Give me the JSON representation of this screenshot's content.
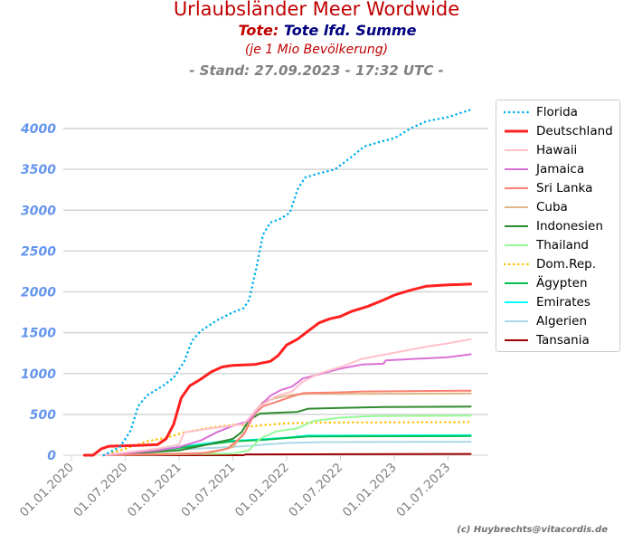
{
  "header": {
    "title": "Urlaubsländer Meer Wordwide",
    "subtitle_prefix": "Tote:",
    "subtitle": "Tote lfd. Summe",
    "note": "(je 1 Mio Bevölkerung)",
    "stand": "- Stand: 27.09.2023 - 17:32 UTC -"
  },
  "copyright": "(c) Huybrechts@vitacordis.de",
  "chart_data": {
    "type": "line",
    "title": "Urlaubsländer Meer Wordwide",
    "xlabel": "",
    "ylabel": "Tote lfd. Summe (je 1 Mio Bevölkerung)",
    "ylim": [
      0,
      4400
    ],
    "xlim": [
      2019.93,
      2023.9
    ],
    "yticks": [
      0,
      500,
      1000,
      1500,
      2000,
      2500,
      3000,
      3500,
      4000
    ],
    "ytick_labels": [
      "0",
      "500",
      "1000",
      "1500",
      "2000",
      "2500",
      "3000",
      "3500",
      "4000"
    ],
    "xticks": [
      2020.0,
      2020.5,
      2021.0,
      2021.5,
      2022.0,
      2022.5,
      2023.0,
      2023.5
    ],
    "xtick_labels": [
      "01.01.2020",
      "01.07.2020",
      "01.01.2021",
      "01.07.2021",
      "01.01.2022",
      "01.07.2022",
      "01.01.2023",
      "01.07.2023"
    ],
    "grid": "y",
    "legend_position": "right",
    "series": [
      {
        "name": "Florida",
        "color": "#00b0f0",
        "style": "dotted",
        "points": [
          [
            2020.3,
            0
          ],
          [
            2020.45,
            100
          ],
          [
            2020.55,
            300
          ],
          [
            2020.62,
            600
          ],
          [
            2020.7,
            730
          ],
          [
            2020.85,
            850
          ],
          [
            2020.95,
            950
          ],
          [
            2021.05,
            1150
          ],
          [
            2021.12,
            1400
          ],
          [
            2021.2,
            1520
          ],
          [
            2021.35,
            1650
          ],
          [
            2021.5,
            1750
          ],
          [
            2021.6,
            1800
          ],
          [
            2021.65,
            1900
          ],
          [
            2021.72,
            2300
          ],
          [
            2021.78,
            2700
          ],
          [
            2021.85,
            2850
          ],
          [
            2021.95,
            2900
          ],
          [
            2022.03,
            2970
          ],
          [
            2022.1,
            3250
          ],
          [
            2022.17,
            3400
          ],
          [
            2022.3,
            3450
          ],
          [
            2022.45,
            3500
          ],
          [
            2022.6,
            3650
          ],
          [
            2022.72,
            3780
          ],
          [
            2022.85,
            3830
          ],
          [
            2023.0,
            3880
          ],
          [
            2023.15,
            4000
          ],
          [
            2023.3,
            4090
          ],
          [
            2023.5,
            4140
          ],
          [
            2023.71,
            4230
          ]
        ]
      },
      {
        "name": "Deutschland",
        "color": "#ff2020",
        "style": "solid-bold",
        "points": [
          [
            2020.12,
            0
          ],
          [
            2020.2,
            0
          ],
          [
            2020.28,
            80
          ],
          [
            2020.35,
            110
          ],
          [
            2020.6,
            120
          ],
          [
            2020.8,
            130
          ],
          [
            2020.88,
            200
          ],
          [
            2020.95,
            380
          ],
          [
            2021.02,
            700
          ],
          [
            2021.1,
            850
          ],
          [
            2021.2,
            930
          ],
          [
            2021.3,
            1020
          ],
          [
            2021.4,
            1080
          ],
          [
            2021.5,
            1100
          ],
          [
            2021.7,
            1110
          ],
          [
            2021.85,
            1150
          ],
          [
            2021.92,
            1220
          ],
          [
            2022.0,
            1350
          ],
          [
            2022.1,
            1420
          ],
          [
            2022.2,
            1520
          ],
          [
            2022.3,
            1620
          ],
          [
            2022.4,
            1670
          ],
          [
            2022.5,
            1700
          ],
          [
            2022.6,
            1760
          ],
          [
            2022.75,
            1820
          ],
          [
            2022.9,
            1900
          ],
          [
            2023.0,
            1960
          ],
          [
            2023.15,
            2020
          ],
          [
            2023.3,
            2070
          ],
          [
            2023.5,
            2085
          ],
          [
            2023.71,
            2095
          ]
        ]
      },
      {
        "name": "Hawaii",
        "color": "#ffc0cb",
        "style": "solid",
        "points": [
          [
            2020.3,
            0
          ],
          [
            2020.8,
            80
          ],
          [
            2021.0,
            130
          ],
          [
            2021.05,
            280
          ],
          [
            2021.3,
            330
          ],
          [
            2021.6,
            380
          ],
          [
            2021.75,
            600
          ],
          [
            2021.9,
            720
          ],
          [
            2022.05,
            780
          ],
          [
            2022.15,
            900
          ],
          [
            2022.3,
            1000
          ],
          [
            2022.5,
            1080
          ],
          [
            2022.7,
            1180
          ],
          [
            2022.9,
            1230
          ],
          [
            2023.1,
            1280
          ],
          [
            2023.3,
            1330
          ],
          [
            2023.5,
            1370
          ],
          [
            2023.71,
            1420
          ]
        ]
      },
      {
        "name": "Jamaica",
        "color": "#da70d6",
        "style": "solid",
        "points": [
          [
            2020.3,
            0
          ],
          [
            2020.8,
            60
          ],
          [
            2021.0,
            100
          ],
          [
            2021.2,
            180
          ],
          [
            2021.35,
            280
          ],
          [
            2021.5,
            360
          ],
          [
            2021.65,
            420
          ],
          [
            2021.75,
            600
          ],
          [
            2021.85,
            730
          ],
          [
            2021.95,
            800
          ],
          [
            2022.05,
            840
          ],
          [
            2022.15,
            940
          ],
          [
            2022.3,
            990
          ],
          [
            2022.5,
            1060
          ],
          [
            2022.7,
            1110
          ],
          [
            2022.9,
            1120
          ],
          [
            2022.92,
            1160
          ],
          [
            2023.2,
            1180
          ],
          [
            2023.5,
            1200
          ],
          [
            2023.71,
            1235
          ]
        ]
      },
      {
        "name": "Sri Lanka",
        "color": "#fa8072",
        "style": "solid",
        "points": [
          [
            2020.3,
            0
          ],
          [
            2021.2,
            20
          ],
          [
            2021.45,
            80
          ],
          [
            2021.6,
            250
          ],
          [
            2021.7,
            500
          ],
          [
            2021.78,
            600
          ],
          [
            2021.9,
            650
          ],
          [
            2022.05,
            720
          ],
          [
            2022.15,
            760
          ],
          [
            2022.5,
            770
          ],
          [
            2022.7,
            780
          ],
          [
            2023.71,
            790
          ]
        ]
      },
      {
        "name": "Cuba",
        "color": "#deb887",
        "style": "solid",
        "points": [
          [
            2020.3,
            0
          ],
          [
            2021.3,
            30
          ],
          [
            2021.5,
            100
          ],
          [
            2021.62,
            300
          ],
          [
            2021.68,
            500
          ],
          [
            2021.78,
            650
          ],
          [
            2021.9,
            700
          ],
          [
            2022.05,
            740
          ],
          [
            2022.2,
            750
          ],
          [
            2023.71,
            755
          ]
        ]
      },
      {
        "name": "Indonesien",
        "color": "#2e8b2e",
        "style": "solid",
        "points": [
          [
            2020.3,
            0
          ],
          [
            2021.0,
            60
          ],
          [
            2021.3,
            140
          ],
          [
            2021.5,
            200
          ],
          [
            2021.58,
            280
          ],
          [
            2021.65,
            430
          ],
          [
            2021.75,
            510
          ],
          [
            2021.9,
            520
          ],
          [
            2022.1,
            530
          ],
          [
            2022.2,
            570
          ],
          [
            2022.5,
            580
          ],
          [
            2022.9,
            590
          ],
          [
            2023.71,
            595
          ]
        ]
      },
      {
        "name": "Thailand",
        "color": "#98fb98",
        "style": "solid",
        "points": [
          [
            2020.3,
            0
          ],
          [
            2021.5,
            20
          ],
          [
            2021.65,
            60
          ],
          [
            2021.75,
            200
          ],
          [
            2021.9,
            290
          ],
          [
            2022.1,
            330
          ],
          [
            2022.25,
            420
          ],
          [
            2022.5,
            460
          ],
          [
            2022.8,
            480
          ],
          [
            2023.71,
            485
          ]
        ]
      },
      {
        "name": "Dom.Rep.",
        "color": "#ffc000",
        "style": "dotted",
        "points": [
          [
            2020.3,
            0
          ],
          [
            2020.5,
            80
          ],
          [
            2020.7,
            170
          ],
          [
            2020.9,
            220
          ],
          [
            2021.05,
            280
          ],
          [
            2021.3,
            340
          ],
          [
            2021.55,
            380
          ],
          [
            2021.65,
            350
          ],
          [
            2021.8,
            370
          ],
          [
            2022.0,
            390
          ],
          [
            2022.3,
            400
          ],
          [
            2023.71,
            405
          ]
        ]
      },
      {
        "name": "Ägypten",
        "color": "#00c050",
        "style": "solid",
        "points": [
          [
            2020.3,
            0
          ],
          [
            2020.7,
            40
          ],
          [
            2021.0,
            90
          ],
          [
            2021.5,
            170
          ],
          [
            2021.8,
            190
          ],
          [
            2022.0,
            210
          ],
          [
            2022.2,
            230
          ],
          [
            2023.71,
            235
          ]
        ]
      },
      {
        "name": "Emirates",
        "color": "#00ffff",
        "style": "solid",
        "points": [
          [
            2020.3,
            0
          ],
          [
            2020.7,
            50
          ],
          [
            2021.0,
            100
          ],
          [
            2021.4,
            170
          ],
          [
            2021.7,
            190
          ],
          [
            2022.0,
            215
          ],
          [
            2022.2,
            240
          ],
          [
            2023.71,
            245
          ]
        ]
      },
      {
        "name": "Algerien",
        "color": "#add8e6",
        "style": "solid",
        "points": [
          [
            2020.3,
            0
          ],
          [
            2020.6,
            40
          ],
          [
            2021.0,
            70
          ],
          [
            2021.6,
            110
          ],
          [
            2021.8,
            130
          ],
          [
            2022.0,
            150
          ],
          [
            2022.3,
            160
          ],
          [
            2023.71,
            165
          ]
        ]
      },
      {
        "name": "Tansania",
        "color": "#a00000",
        "style": "solid",
        "points": [
          [
            2020.3,
            0
          ],
          [
            2021.6,
            0
          ],
          [
            2021.62,
            10
          ],
          [
            2023.71,
            15
          ]
        ]
      }
    ]
  }
}
